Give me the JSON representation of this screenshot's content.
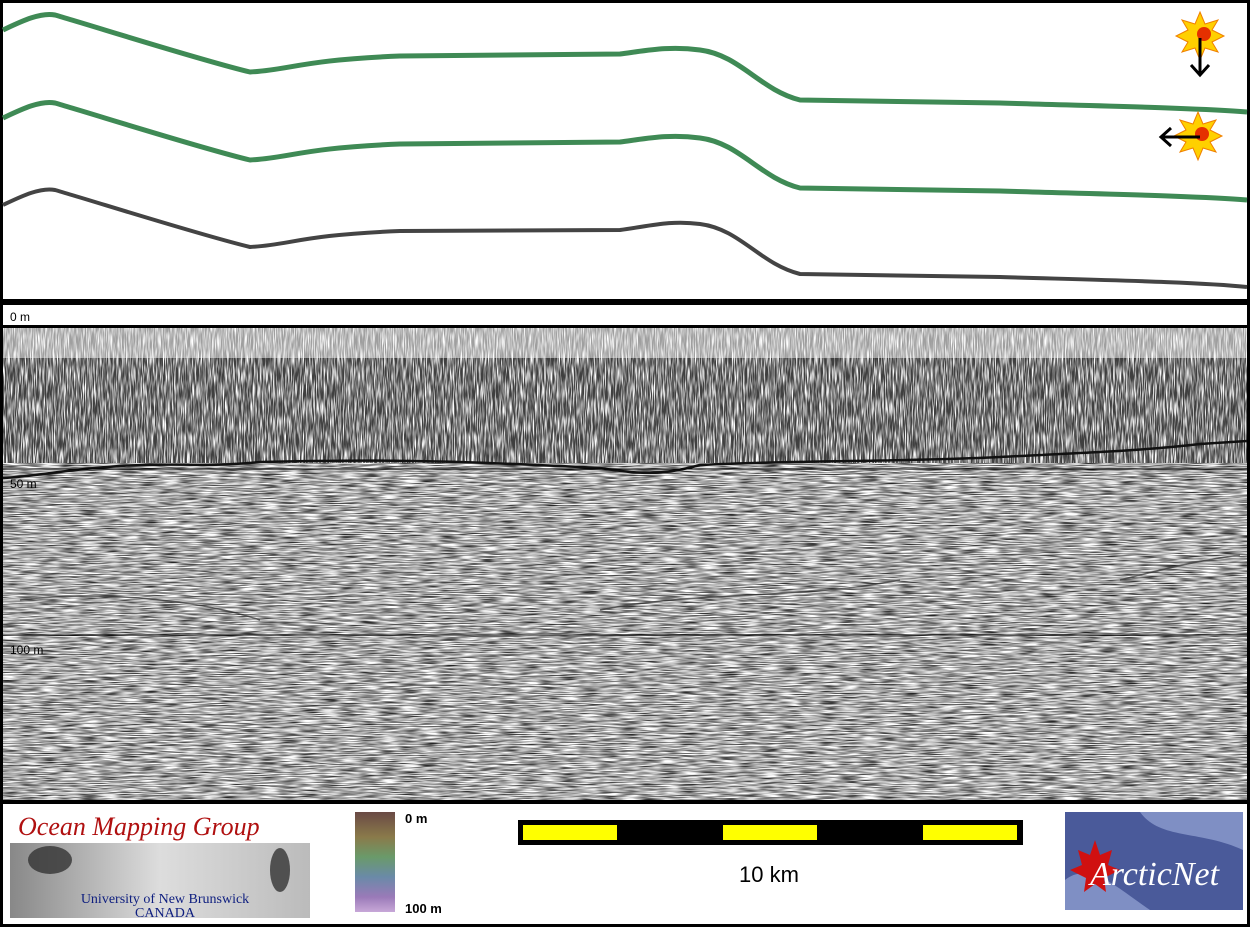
{
  "depth_labels": [
    "0 m",
    "50 m",
    "100 m"
  ],
  "footer": {
    "logo": {
      "title": "Ocean Mapping Group",
      "university": "University of New Brunswick",
      "country": "CANADA"
    },
    "colorbar": {
      "top": "0 m",
      "bottom": "100 m"
    },
    "scale_bar": "10 km",
    "partner": "ArcticNet"
  }
}
